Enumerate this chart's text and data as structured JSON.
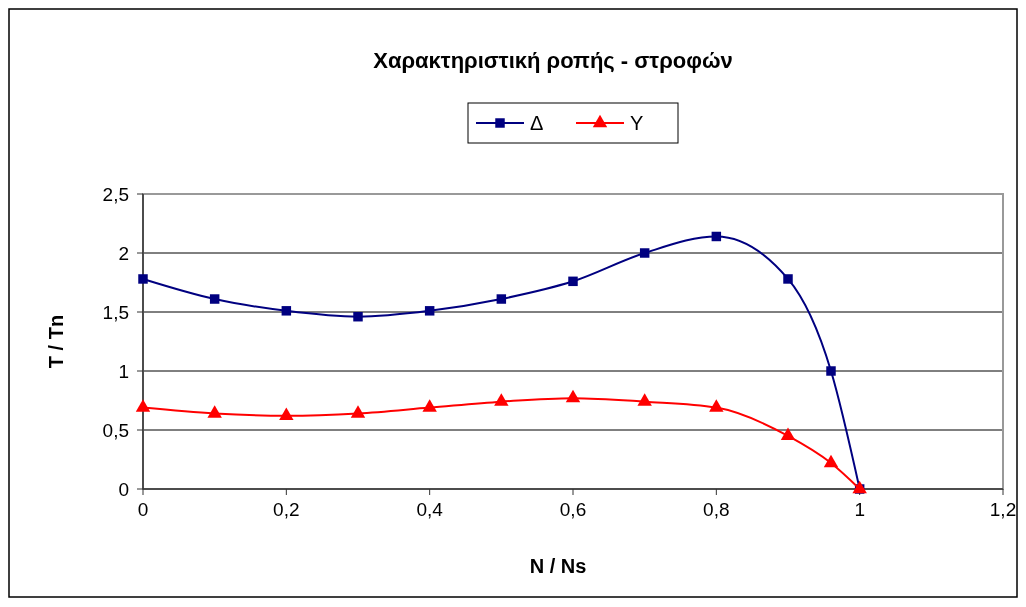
{
  "chart_data": {
    "type": "line",
    "title": "Χαρακτηριστική ροπής - στροφών",
    "xlabel": "N / Ns",
    "ylabel": "T / Tn",
    "x": [
      0,
      0.1,
      0.2,
      0.3,
      0.4,
      0.5,
      0.6,
      0.7,
      0.8,
      0.9,
      0.96,
      1
    ],
    "series": [
      {
        "name": "Δ",
        "color": "#000080",
        "marker": "square",
        "values": [
          1.78,
          1.61,
          1.51,
          1.46,
          1.51,
          1.61,
          1.76,
          2.0,
          2.14,
          1.78,
          1.0,
          0
        ]
      },
      {
        "name": "Y",
        "color": "#ff0000",
        "marker": "triangle",
        "values": [
          0.69,
          0.64,
          0.62,
          0.64,
          0.69,
          0.74,
          0.77,
          0.74,
          0.69,
          0.45,
          0.22,
          0
        ]
      }
    ],
    "xlim": [
      0,
      1.2
    ],
    "xticks": [
      0,
      {
        "value": 0.2,
        "label": "0,2"
      },
      {
        "value": 0.4,
        "label": "0,4"
      },
      {
        "value": 0.6,
        "label": "0,6"
      },
      {
        "value": 0.8,
        "label": "0,8"
      },
      1,
      {
        "value": 1.2,
        "label": "1,2"
      }
    ],
    "ylim": [
      0,
      2.5
    ],
    "yticks": [
      0,
      {
        "value": 0.5,
        "label": "0,5"
      },
      1,
      {
        "value": 1.5,
        "label": "1,5"
      },
      2,
      {
        "value": 2.5,
        "label": "2,5"
      }
    ],
    "grid": "y",
    "legend": "top",
    "line_style": "solid"
  }
}
